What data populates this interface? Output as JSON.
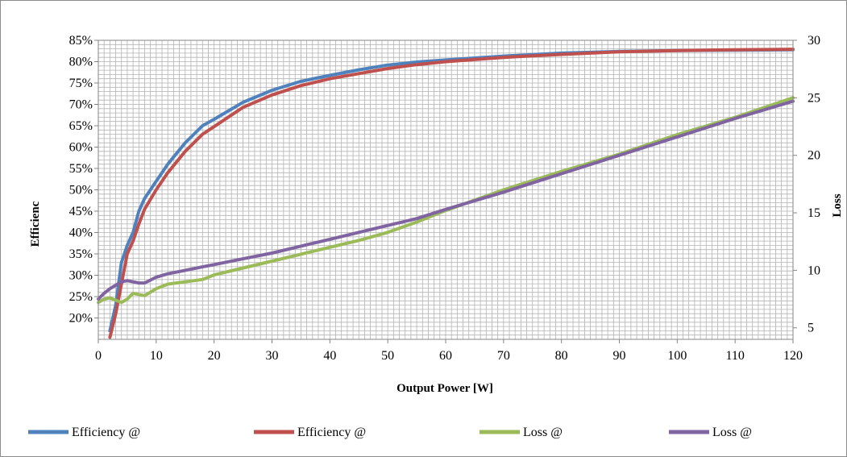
{
  "chart_data": {
    "type": "line",
    "xlabel": "Output Power [W]",
    "ylabel": "Efficienc",
    "y2label": "Loss",
    "xlim": [
      0,
      120
    ],
    "ylim": [
      15,
      85
    ],
    "y2lim": [
      4,
      30
    ],
    "xticks": [
      0,
      10,
      20,
      30,
      40,
      50,
      60,
      70,
      80,
      90,
      100,
      110,
      120
    ],
    "yticks": [
      20,
      25,
      30,
      35,
      40,
      45,
      50,
      55,
      60,
      65,
      70,
      75,
      80,
      85
    ],
    "ytick_labels": [
      "20%",
      "25%",
      "30%",
      "35%",
      "40%",
      "45%",
      "50%",
      "55%",
      "60%",
      "65%",
      "70%",
      "75%",
      "80%",
      "85%"
    ],
    "y2ticks": [
      5,
      10,
      15,
      20,
      25,
      30
    ],
    "grid": true,
    "legend_position": "bottom",
    "series": [
      {
        "name": "Efficiency @",
        "axis": "left",
        "color": "#4f81bd",
        "x": [
          2,
          3,
          4,
          5,
          6,
          7,
          8,
          10,
          12,
          15,
          18,
          20,
          25,
          30,
          35,
          40,
          45,
          50,
          55,
          60,
          70,
          80,
          90,
          100,
          110,
          120
        ],
        "y": [
          17,
          23,
          33,
          37,
          40,
          45,
          48,
          52,
          56,
          61,
          65,
          66.5,
          70.5,
          73.3,
          75.4,
          76.8,
          78.1,
          79.2,
          79.9,
          80.4,
          81.3,
          82,
          82.4,
          82.6,
          82.7,
          82.8
        ]
      },
      {
        "name": "Efficiency @",
        "axis": "left",
        "color": "#c0504d",
        "x": [
          2,
          3,
          4,
          5,
          6,
          7,
          8,
          10,
          12,
          15,
          18,
          20,
          25,
          30,
          35,
          40,
          45,
          50,
          55,
          60,
          70,
          80,
          90,
          100,
          110,
          120
        ],
        "y": [
          15.5,
          21,
          28,
          35,
          38,
          42,
          45.5,
          50,
          54,
          59,
          63,
          64.8,
          69.3,
          72.2,
          74.4,
          76,
          77.2,
          78.4,
          79.3,
          80,
          81,
          81.7,
          82.3,
          82.6,
          82.8,
          82.9
        ]
      },
      {
        "name": "Loss @",
        "axis": "right",
        "color": "#9bbb59",
        "x": [
          0,
          1,
          2,
          3,
          4,
          5,
          6,
          7,
          8,
          10,
          12,
          15,
          18,
          20,
          25,
          30,
          35,
          40,
          45,
          50,
          55,
          60,
          70,
          80,
          90,
          100,
          110,
          120
        ],
        "y": [
          7.2,
          7.5,
          7.6,
          7.4,
          7.2,
          7.5,
          8,
          7.9,
          7.8,
          8.4,
          8.8,
          9.0,
          9.2,
          9.6,
          10.2,
          10.8,
          11.4,
          12.0,
          12.6,
          13.3,
          14.2,
          15.2,
          17.0,
          18.6,
          20.1,
          21.8,
          23.3,
          25.0
        ]
      },
      {
        "name": "Loss @",
        "axis": "right",
        "color": "#8064a2",
        "x": [
          0,
          1,
          2,
          3,
          4,
          5,
          6,
          7,
          8,
          10,
          12,
          15,
          18,
          20,
          25,
          30,
          35,
          40,
          45,
          50,
          55,
          60,
          70,
          80,
          90,
          100,
          110,
          120
        ],
        "y": [
          7.5,
          8.0,
          8.4,
          8.7,
          9.0,
          9.1,
          9.0,
          8.9,
          8.9,
          9.4,
          9.7,
          10.0,
          10.3,
          10.5,
          11.0,
          11.5,
          12.1,
          12.7,
          13.3,
          13.9,
          14.5,
          15.3,
          16.8,
          18.4,
          20.0,
          21.6,
          23.2,
          24.7
        ]
      }
    ]
  }
}
